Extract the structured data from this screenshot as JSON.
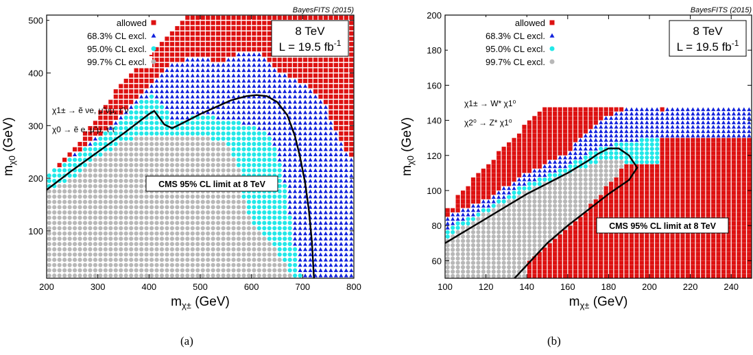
{
  "chart_data": [
    {
      "type": "scatter",
      "panel_label": "(a)",
      "credit": "BayesFITS (2015)",
      "xlabel_main": "m",
      "xlabel_sub": "χ±",
      "xlabel_unit": " (GeV)",
      "ylabel_main": "m",
      "ylabel_sub": "χ0",
      "ylabel_unit": " (GeV)",
      "xlim": [
        200,
        800
      ],
      "ylim": [
        10,
        510
      ],
      "xticks": [
        200,
        300,
        400,
        500,
        600,
        700,
        800
      ],
      "yticks": [
        100,
        200,
        300,
        400,
        500
      ],
      "grid": false,
      "legend": {
        "position": "top-left",
        "entries": [
          "allowed",
          "68.3% CL excl.",
          "95.0% CL excl.",
          "99.7% CL excl."
        ]
      },
      "energy_box": {
        "line1": "8 TeV",
        "line2_main": "L = 19.5 fb",
        "line2_sup": "-1"
      },
      "process_lines": [
        "χ1± → ẽ νe, μ̃ νμ, τ̃ ν",
        "χ0 → ẽ e, μ̃ μ, τ̃ τ"
      ],
      "limit_label": "CMS 95% CL limit at 8 TeV",
      "limit_curve": [
        [
          200,
          178
        ],
        [
          250,
          215
        ],
        [
          300,
          250
        ],
        [
          350,
          285
        ],
        [
          400,
          322
        ],
        [
          410,
          328
        ],
        [
          420,
          315
        ],
        [
          430,
          302
        ],
        [
          445,
          295
        ],
        [
          460,
          302
        ],
        [
          480,
          312
        ],
        [
          500,
          322
        ],
        [
          530,
          335
        ],
        [
          560,
          348
        ],
        [
          590,
          356
        ],
        [
          610,
          358
        ],
        [
          630,
          356
        ],
        [
          650,
          345
        ],
        [
          670,
          320
        ],
        [
          685,
          280
        ],
        [
          695,
          240
        ],
        [
          705,
          190
        ],
        [
          712,
          140
        ],
        [
          718,
          80
        ],
        [
          722,
          10
        ]
      ],
      "grid_step": [
        10,
        10
      ],
      "region_boundaries": {
        "upper_edge": [
          [
            200,
            205
          ],
          [
            270,
            280
          ],
          [
            330,
            360
          ],
          [
            390,
            420
          ],
          [
            450,
            480
          ],
          [
            470,
            510
          ],
          [
            800,
            510
          ]
        ],
        "gray_edge": [
          [
            200,
            175
          ],
          [
            250,
            200
          ],
          [
            300,
            240
          ],
          [
            350,
            270
          ],
          [
            400,
            285
          ],
          [
            450,
            285
          ],
          [
            500,
            280
          ],
          [
            550,
            270
          ],
          [
            575,
            220
          ],
          [
            585,
            160
          ],
          [
            600,
            120
          ],
          [
            640,
            80
          ],
          [
            680,
            10
          ]
        ],
        "cyan_edge": [
          [
            200,
            205
          ],
          [
            300,
            275
          ],
          [
            350,
            310
          ],
          [
            380,
            345
          ],
          [
            410,
            360
          ],
          [
            450,
            305
          ],
          [
            500,
            320
          ],
          [
            560,
            310
          ],
          [
            600,
            300
          ],
          [
            640,
            280
          ],
          [
            660,
            220
          ],
          [
            670,
            160
          ],
          [
            680,
            100
          ],
          [
            690,
            40
          ],
          [
            700,
            10
          ]
        ],
        "blue_edge": [
          [
            200,
            205
          ],
          [
            300,
            280
          ],
          [
            360,
            335
          ],
          [
            400,
            380
          ],
          [
            440,
            420
          ],
          [
            500,
            430
          ],
          [
            540,
            420
          ],
          [
            580,
            440
          ],
          [
            620,
            435
          ],
          [
            660,
            400
          ],
          [
            700,
            380
          ],
          [
            740,
            350
          ],
          [
            760,
            300
          ],
          [
            780,
            260
          ],
          [
            800,
            240
          ]
        ]
      }
    },
    {
      "type": "scatter",
      "panel_label": "(b)",
      "credit": "BayesFITS (2015)",
      "xlabel_main": "m",
      "xlabel_sub": "χ±",
      "xlabel_unit": " (GeV)",
      "ylabel_main": "m",
      "ylabel_sub": "χ0",
      "ylabel_unit": " (GeV)",
      "xlim": [
        100,
        250
      ],
      "ylim": [
        50,
        200
      ],
      "xticks": [
        100,
        120,
        140,
        160,
        180,
        200,
        220,
        240
      ],
      "yticks": [
        60,
        80,
        100,
        120,
        140,
        160,
        180,
        200
      ],
      "grid": false,
      "legend": {
        "position": "top-left",
        "entries": [
          "allowed",
          "68.3% CL excl.",
          "95.0% CL excl.",
          "99.7% CL excl."
        ]
      },
      "energy_box": {
        "line1": "8 TeV",
        "line2_main": "L = 19.5 fb",
        "line2_sup": "-1"
      },
      "process_lines": [
        "χ1± → W* χ1⁰",
        "χ2⁰ → Z* χ1⁰"
      ],
      "limit_label": "CMS 95% CL limit at 8 TeV",
      "limit_curve": [
        [
          100,
          70
        ],
        [
          110,
          77
        ],
        [
          120,
          84
        ],
        [
          130,
          91
        ],
        [
          140,
          98
        ],
        [
          150,
          104
        ],
        [
          160,
          110
        ],
        [
          170,
          117
        ],
        [
          175,
          121
        ],
        [
          180,
          124
        ],
        [
          185,
          124
        ],
        [
          190,
          120
        ],
        [
          194,
          113
        ],
        [
          190,
          106
        ],
        [
          180,
          98
        ],
        [
          170,
          89
        ],
        [
          160,
          80
        ],
        [
          150,
          70
        ],
        [
          142,
          60
        ],
        [
          134,
          50
        ]
      ],
      "grid_step": [
        2.5,
        2.5
      ],
      "region_boundaries": {
        "upper_y": 148,
        "left_edge_top": 90,
        "gray_upper": [
          [
            100,
            72
          ],
          [
            120,
            88
          ],
          [
            140,
            100
          ],
          [
            160,
            110
          ],
          [
            180,
            118
          ],
          [
            190,
            116
          ]
        ],
        "gray_lower": [
          [
            100,
            50
          ],
          [
            125,
            50
          ],
          [
            135,
            55
          ],
          [
            150,
            68
          ],
          [
            170,
            90
          ],
          [
            185,
            110
          ],
          [
            190,
            116
          ]
        ],
        "cyan_upper": [
          [
            100,
            78
          ],
          [
            120,
            90
          ],
          [
            140,
            104
          ],
          [
            160,
            114
          ],
          [
            175,
            124
          ],
          [
            190,
            128
          ],
          [
            205,
            130
          ]
        ],
        "blue_upper": [
          [
            100,
            85
          ],
          [
            120,
            95
          ],
          [
            140,
            110
          ],
          [
            160,
            122
          ],
          [
            175,
            140
          ],
          [
            195,
            150
          ],
          [
            205,
            146
          ],
          [
            230,
            150
          ]
        ]
      }
    }
  ]
}
